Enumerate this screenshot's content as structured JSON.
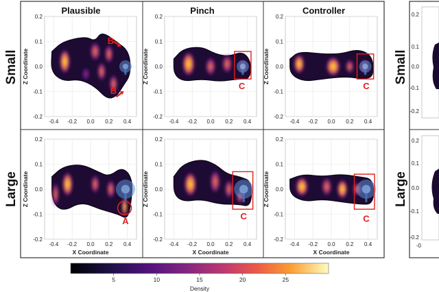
{
  "chart_data": {
    "type": "heatmap",
    "columns": [
      "Plausible",
      "Pinch",
      "Controller"
    ],
    "rows": [
      "Small",
      "Large"
    ],
    "xlabel": "X Coordinate",
    "ylabel": "Z Coordinate",
    "xlim": [
      -0.5,
      0.5
    ],
    "ylim": [
      -0.2,
      0.2
    ],
    "xticks": [
      "-0.4",
      "-0.2",
      "0.0",
      "0.2",
      "0.4"
    ],
    "yticks": [
      "0.2",
      "0.1",
      "0.0",
      "-0.1",
      "-0.2"
    ],
    "grid": true,
    "colorbar": {
      "label": "Density",
      "ticks": [
        "5",
        "10",
        "15",
        "20",
        "25"
      ],
      "tick_values": [
        5,
        10,
        15,
        20,
        25
      ],
      "range": [
        0,
        30
      ]
    },
    "panels": [
      {
        "row": "Small",
        "column": "Plausible",
        "annotations": [
          {
            "text": "B",
            "x": 0.22,
            "y": 0.09
          },
          {
            "text": "B",
            "x": 0.25,
            "y": -0.11
          }
        ],
        "target": {
          "x": 0.38,
          "y": 0.0
        }
      },
      {
        "row": "Small",
        "column": "Pinch",
        "annotations": [
          {
            "text": "C",
            "x": 0.34,
            "y": -0.09
          }
        ],
        "target": {
          "x": 0.35,
          "y": 0.0
        },
        "box": {
          "x0": 0.26,
          "x1": 0.44,
          "y0": -0.05,
          "y1": 0.06
        }
      },
      {
        "row": "Small",
        "column": "Controller",
        "annotations": [
          {
            "text": "C",
            "x": 0.38,
            "y": -0.09
          }
        ],
        "target": {
          "x": 0.37,
          "y": 0.0
        },
        "box": {
          "x0": 0.28,
          "x1": 0.46,
          "y0": -0.05,
          "y1": 0.05
        }
      },
      {
        "row": "Large",
        "column": "Plausible",
        "annotations": [
          {
            "text": "A",
            "x": 0.38,
            "y": -0.14
          }
        ],
        "target": {
          "x": 0.38,
          "y": 0.0
        }
      },
      {
        "row": "Large",
        "column": "Pinch",
        "annotations": [
          {
            "text": "C",
            "x": 0.36,
            "y": -0.12
          }
        ],
        "target": {
          "x": 0.36,
          "y": 0.0
        },
        "box": {
          "x0": 0.24,
          "x1": 0.46,
          "y0": -0.08,
          "y1": 0.07
        }
      },
      {
        "row": "Large",
        "column": "Controller",
        "annotations": [
          {
            "text": "C",
            "x": 0.38,
            "y": -0.13
          }
        ],
        "target": {
          "x": 0.38,
          "y": 0.0
        },
        "box": {
          "x0": 0.25,
          "x1": 0.47,
          "y0": -0.08,
          "y1": 0.06
        }
      }
    ]
  }
}
